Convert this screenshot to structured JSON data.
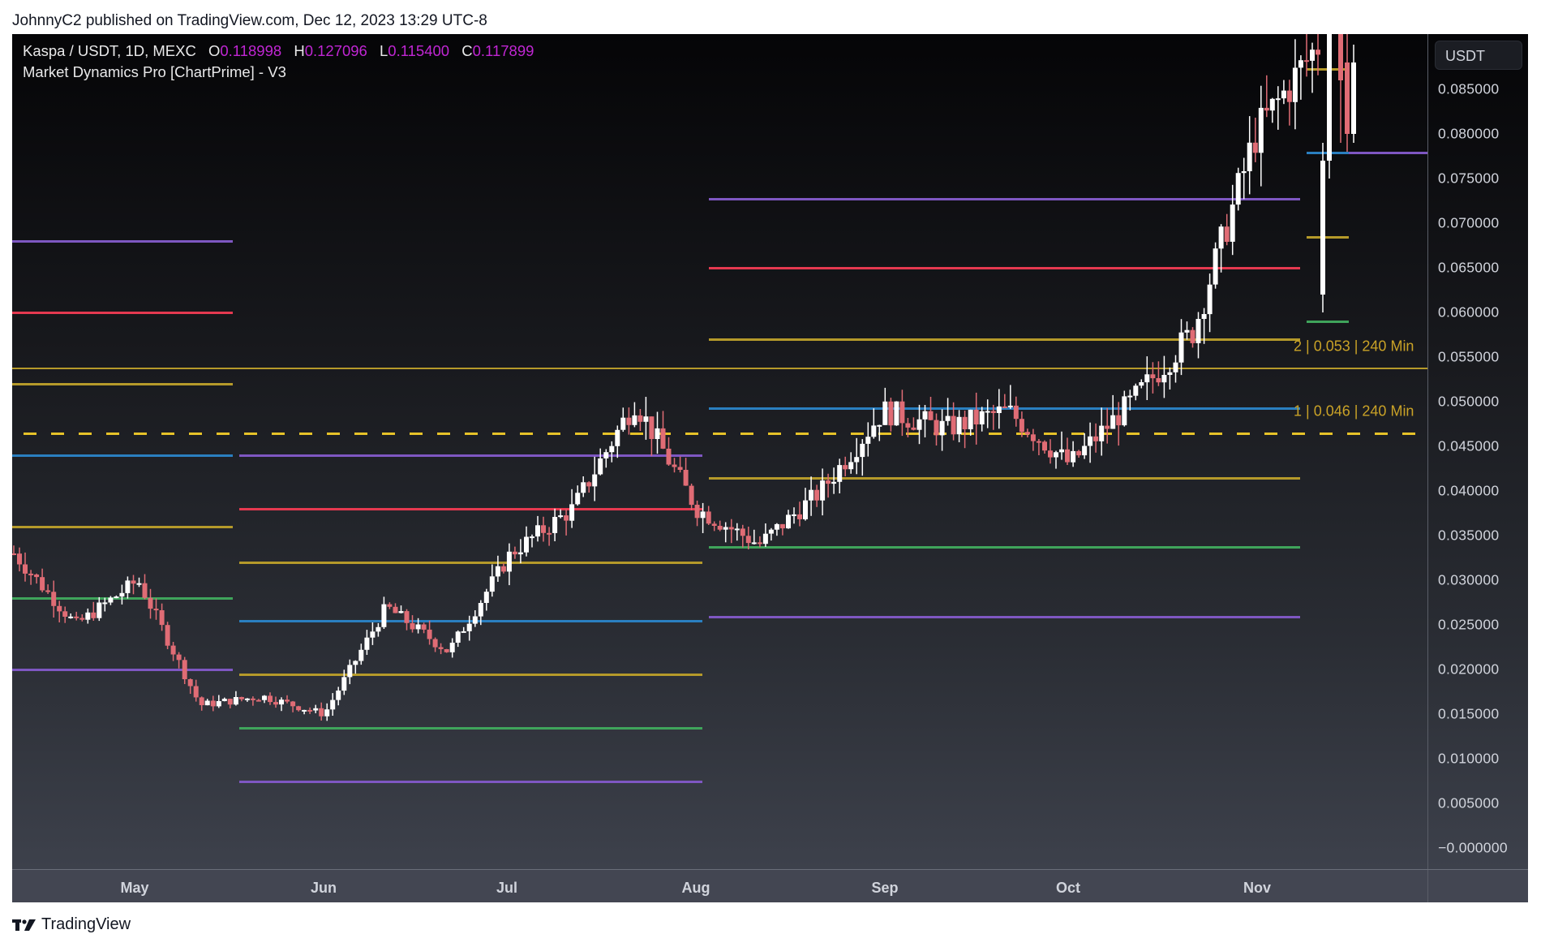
{
  "publish_line": "JohnnyC2 published on TradingView.com, Dec 12, 2023 13:29 UTC-8",
  "legend": {
    "symbol": "Kaspa / USDT, 1D, MEXC",
    "open_label": "O",
    "open": "0.118998",
    "high_label": "H",
    "high": "0.127096",
    "low_label": "L",
    "low": "0.115400",
    "close_label": "C",
    "close": "0.117899",
    "indicator": "Market Dynamics Pro [ChartPrime] - V3"
  },
  "price_axis": {
    "currency": "USDT",
    "ticks": [
      "0.085000",
      "0.080000",
      "0.075000",
      "0.070000",
      "0.065000",
      "0.060000",
      "0.055000",
      "0.050000",
      "0.045000",
      "0.040000",
      "0.035000",
      "0.030000",
      "0.025000",
      "0.020000",
      "0.015000",
      "0.010000",
      "0.005000",
      "−0.000000"
    ]
  },
  "time_axis": {
    "months": [
      "May",
      "Jun",
      "Jul",
      "Aug",
      "Sep",
      "Oct",
      "Nov"
    ]
  },
  "level_labels": [
    {
      "text": "2  |  0.053  |  240 Min"
    },
    {
      "text": "1  |  0.046  |  240 Min"
    }
  ],
  "footer": {
    "brand": "TradingView"
  },
  "colors": {
    "bull": "#ffffff",
    "bear": "#e06c75",
    "purple": "#7e57c2",
    "red": "#e53950",
    "yellow": "#b59a2a",
    "blue": "#2a7fc0",
    "green": "#3fa45b",
    "dashed": "#e6c229"
  },
  "chart_data": {
    "type": "candlestick",
    "title": "Kaspa / USDT, 1D, MEXC",
    "subtitle": "Market Dynamics Pro [ChartPrime] - V3",
    "ylabel": "USDT",
    "ylim": [
      0.0,
      0.087
    ],
    "x_tick_labels": [
      "May",
      "Jun",
      "Jul",
      "Aug",
      "Sep",
      "Oct",
      "Nov"
    ],
    "ohlc_last": {
      "open": 0.118998,
      "high": 0.127096,
      "low": 0.1154,
      "close": 0.117899
    },
    "approx_close_path": [
      {
        "x": "late Apr",
        "close": 0.033
      },
      {
        "x": "early May",
        "close": 0.025
      },
      {
        "x": "mid May",
        "close": 0.03
      },
      {
        "x": "late May",
        "close": 0.016
      },
      {
        "x": "early Jun",
        "close": 0.017
      },
      {
        "x": "mid Jun",
        "close": 0.015
      },
      {
        "x": "late Jun",
        "close": 0.027
      },
      {
        "x": "early Jul",
        "close": 0.022
      },
      {
        "x": "mid Jul",
        "close": 0.033
      },
      {
        "x": "late Jul",
        "close": 0.038
      },
      {
        "x": "early Aug",
        "close": 0.05
      },
      {
        "x": "mid Aug",
        "close": 0.038
      },
      {
        "x": "late Aug",
        "close": 0.034
      },
      {
        "x": "early Sep",
        "close": 0.04
      },
      {
        "x": "mid Sep",
        "close": 0.049
      },
      {
        "x": "late Sep",
        "close": 0.047
      },
      {
        "x": "early Oct",
        "close": 0.049
      },
      {
        "x": "mid Oct",
        "close": 0.043
      },
      {
        "x": "late Oct",
        "close": 0.05
      },
      {
        "x": "early Nov",
        "close": 0.058
      },
      {
        "x": "mid Nov",
        "close": 0.08
      },
      {
        "x": "late Nov",
        "close": 0.09
      }
    ],
    "level_segments": [
      {
        "range": "Apr-May",
        "levels": {
          "purple_top": 0.068,
          "red": 0.06,
          "yellow_1": 0.052,
          "blue": 0.044,
          "yellow_2": 0.036,
          "green": 0.028,
          "purple_bottom": 0.02
        }
      },
      {
        "range": "May-Jul",
        "levels": {
          "purple_top": 0.044,
          "red": 0.038,
          "yellow_1": 0.032,
          "blue": 0.0255,
          "yellow_2": 0.0195,
          "green": 0.0135,
          "purple_bottom": 0.0075
        }
      },
      {
        "range": "Aug-Nov",
        "levels": {
          "purple_top": 0.0727,
          "red": 0.065,
          "yellow_1": 0.057,
          "blue": 0.0493,
          "yellow_2": 0.0415,
          "green": 0.0337,
          "purple_bottom": 0.0259
        }
      },
      {
        "range": "Nov",
        "levels": {
          "yellow_top": 0.0873,
          "blue": 0.0779,
          "yellow_1": 0.0685,
          "green": 0.059,
          "purple": 0.0779
        }
      }
    ],
    "horizontal_lines": [
      {
        "label": "2 | 0.053 | 240 Min",
        "value": 0.0537,
        "style": "solid",
        "color": "yellow"
      },
      {
        "label": "1 | 0.046 | 240 Min",
        "value": 0.0465,
        "style": "dashed",
        "color": "yellow"
      }
    ],
    "grid": false,
    "legend_position": "top-left"
  }
}
